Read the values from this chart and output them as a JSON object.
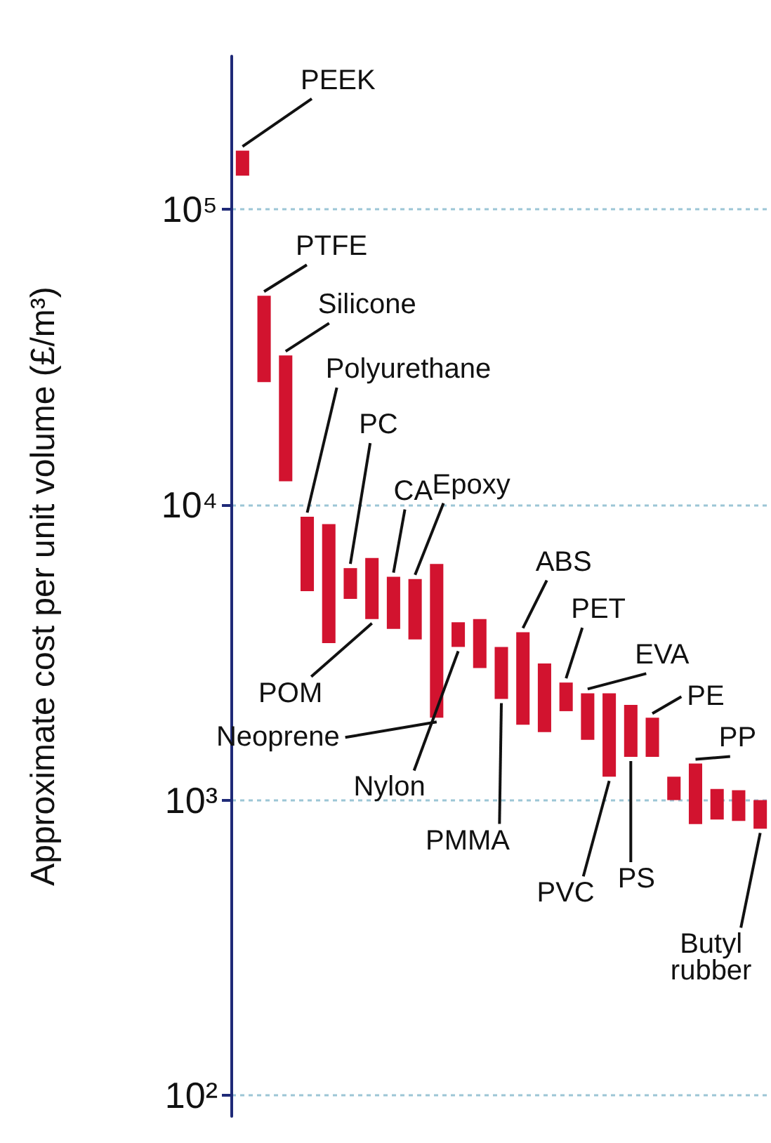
{
  "chart_data": {
    "type": "bar",
    "ylabel": "Approximate cost per unit volume (£/m³)",
    "categories": [
      null,
      null,
      null,
      null,
      null,
      null,
      null,
      null,
      null,
      null,
      null,
      null,
      null,
      null,
      null,
      null,
      null,
      null,
      null,
      null,
      null,
      null,
      null,
      null,
      null
    ],
    "base": [
      130000,
      26000,
      12000,
      5100,
      3400,
      4800,
      4100,
      3800,
      3500,
      1900,
      3300,
      2800,
      2200,
      1800,
      1700,
      2000,
      1600,
      1200,
      1400,
      1400,
      1000,
      830,
      860,
      850,
      800
    ],
    "values": [
      28000,
      25000,
      20000,
      4000,
      5200,
      1300,
      2500,
      1900,
      2100,
      4400,
      700,
      1300,
      1100,
      1900,
      1200,
      500,
      700,
      1100,
      700,
      500,
      200,
      500,
      230,
      230,
      200
    ],
    "color": "#d2132f",
    "log": "y",
    "ylim": [
      85,
      330000
    ],
    "yticks": [
      {
        "value": 100,
        "label": "10²"
      },
      {
        "value": 1000,
        "label": "10³"
      },
      {
        "value": 10000,
        "label": "10⁴"
      },
      {
        "value": 100000,
        "label": "10⁵"
      }
    ],
    "grid": "y",
    "annotations": [
      "PEEK",
      "PTFE",
      "Silicone",
      "Polyurethane",
      "PC",
      "POM",
      "CA",
      "Epoxy",
      "Neoprene",
      "Nylon",
      "PMMA",
      "ABS",
      "PET",
      "EVA",
      "PVC",
      "PS",
      "PE",
      "PP",
      "Butyl rubber"
    ]
  }
}
